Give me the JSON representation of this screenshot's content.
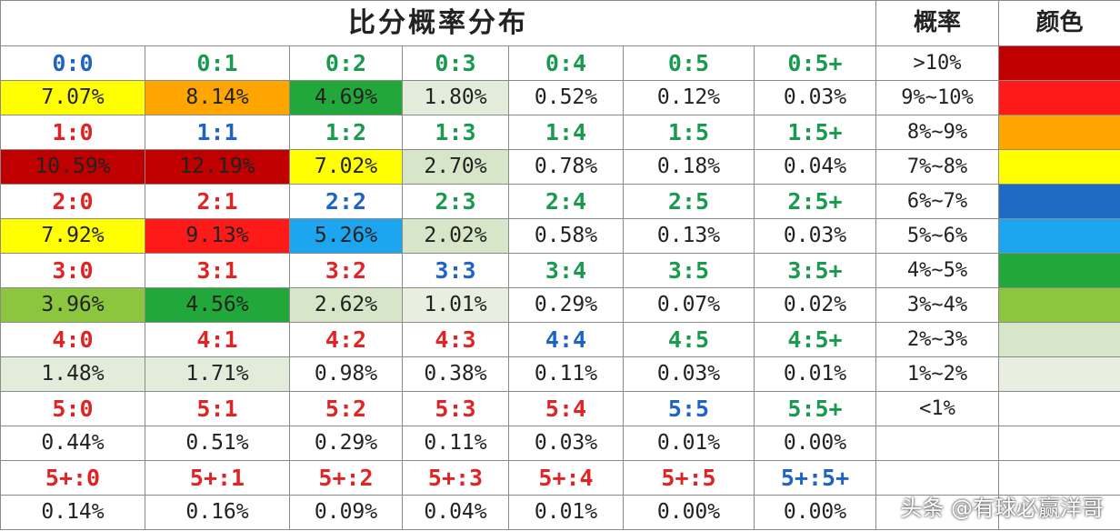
{
  "title": "比分概率分布",
  "legend": {
    "header_prob": "概率",
    "header_color": "颜色",
    "rows": [
      {
        "label": ">10%",
        "color": "#c00000"
      },
      {
        "label": "9%~10%",
        "color": "#ff1a1a"
      },
      {
        "label": "8%~9%",
        "color": "#ffa500"
      },
      {
        "label": "7%~8%",
        "color": "#ffff00"
      },
      {
        "label": "6%~7%",
        "color": "#1f6bc4"
      },
      {
        "label": "5%~6%",
        "color": "#1ea5f0"
      },
      {
        "label": "4%~5%",
        "color": "#22a83a"
      },
      {
        "label": "3%~4%",
        "color": "#8cc63f"
      },
      {
        "label": "2%~3%",
        "color": "#d7e6c8"
      },
      {
        "label": "1%~2%",
        "color": "#e8efe0"
      },
      {
        "label": "<1%",
        "color": "#ffffff"
      }
    ]
  },
  "grid": [
    {
      "scores": [
        {
          "text": "0:0",
          "tone": "blue"
        },
        {
          "text": "0:1",
          "tone": "green"
        },
        {
          "text": "0:2",
          "tone": "green"
        },
        {
          "text": "0:3",
          "tone": "green"
        },
        {
          "text": "0:4",
          "tone": "green"
        },
        {
          "text": "0:5",
          "tone": "green"
        },
        {
          "text": "0:5+",
          "tone": "green"
        }
      ],
      "probs": [
        {
          "text": "7.07%",
          "bg": "#ffff00"
        },
        {
          "text": "8.14%",
          "bg": "#ffa500"
        },
        {
          "text": "4.69%",
          "bg": "#22a83a"
        },
        {
          "text": "1.80%",
          "bg": "#e2ecda"
        },
        {
          "text": "0.52%",
          "bg": "#ffffff"
        },
        {
          "text": "0.12%",
          "bg": "#ffffff"
        },
        {
          "text": "0.03%",
          "bg": "#ffffff"
        }
      ]
    },
    {
      "scores": [
        {
          "text": "1:0",
          "tone": "red"
        },
        {
          "text": "1:1",
          "tone": "blue"
        },
        {
          "text": "1:2",
          "tone": "green"
        },
        {
          "text": "1:3",
          "tone": "green"
        },
        {
          "text": "1:4",
          "tone": "green"
        },
        {
          "text": "1:5",
          "tone": "green"
        },
        {
          "text": "1:5+",
          "tone": "green"
        }
      ],
      "probs": [
        {
          "text": "10.59%",
          "bg": "#c00000"
        },
        {
          "text": "12.19%",
          "bg": "#c00000"
        },
        {
          "text": "7.02%",
          "bg": "#ffff00"
        },
        {
          "text": "2.70%",
          "bg": "#d7e6c8"
        },
        {
          "text": "0.78%",
          "bg": "#ffffff"
        },
        {
          "text": "0.18%",
          "bg": "#ffffff"
        },
        {
          "text": "0.04%",
          "bg": "#ffffff"
        }
      ]
    },
    {
      "scores": [
        {
          "text": "2:0",
          "tone": "red"
        },
        {
          "text": "2:1",
          "tone": "red"
        },
        {
          "text": "2:2",
          "tone": "blue"
        },
        {
          "text": "2:3",
          "tone": "green"
        },
        {
          "text": "2:4",
          "tone": "green"
        },
        {
          "text": "2:5",
          "tone": "green"
        },
        {
          "text": "2:5+",
          "tone": "green"
        }
      ],
      "probs": [
        {
          "text": "7.92%",
          "bg": "#ffff00"
        },
        {
          "text": "9.13%",
          "bg": "#ff1a1a"
        },
        {
          "text": "5.26%",
          "bg": "#1ea5f0"
        },
        {
          "text": "2.02%",
          "bg": "#d7e6c8"
        },
        {
          "text": "0.58%",
          "bg": "#ffffff"
        },
        {
          "text": "0.13%",
          "bg": "#ffffff"
        },
        {
          "text": "0.03%",
          "bg": "#ffffff"
        }
      ]
    },
    {
      "scores": [
        {
          "text": "3:0",
          "tone": "red"
        },
        {
          "text": "3:1",
          "tone": "red"
        },
        {
          "text": "3:2",
          "tone": "red"
        },
        {
          "text": "3:3",
          "tone": "blue"
        },
        {
          "text": "3:4",
          "tone": "green"
        },
        {
          "text": "3:5",
          "tone": "green"
        },
        {
          "text": "3:5+",
          "tone": "green"
        }
      ],
      "probs": [
        {
          "text": "3.96%",
          "bg": "#8cc63f"
        },
        {
          "text": "4.56%",
          "bg": "#22a83a"
        },
        {
          "text": "2.62%",
          "bg": "#d7e6c8"
        },
        {
          "text": "1.01%",
          "bg": "#e8efe0"
        },
        {
          "text": "0.29%",
          "bg": "#ffffff"
        },
        {
          "text": "0.07%",
          "bg": "#ffffff"
        },
        {
          "text": "0.02%",
          "bg": "#ffffff"
        }
      ]
    },
    {
      "scores": [
        {
          "text": "4:0",
          "tone": "red"
        },
        {
          "text": "4:1",
          "tone": "red"
        },
        {
          "text": "4:2",
          "tone": "red"
        },
        {
          "text": "4:3",
          "tone": "red"
        },
        {
          "text": "4:4",
          "tone": "blue"
        },
        {
          "text": "4:5",
          "tone": "green"
        },
        {
          "text": "4:5+",
          "tone": "green"
        }
      ],
      "probs": [
        {
          "text": "1.48%",
          "bg": "#e2ecda"
        },
        {
          "text": "1.71%",
          "bg": "#e2ecda"
        },
        {
          "text": "0.98%",
          "bg": "#ffffff"
        },
        {
          "text": "0.38%",
          "bg": "#ffffff"
        },
        {
          "text": "0.11%",
          "bg": "#ffffff"
        },
        {
          "text": "0.03%",
          "bg": "#ffffff"
        },
        {
          "text": "0.01%",
          "bg": "#ffffff"
        }
      ]
    },
    {
      "scores": [
        {
          "text": "5:0",
          "tone": "red"
        },
        {
          "text": "5:1",
          "tone": "red"
        },
        {
          "text": "5:2",
          "tone": "red"
        },
        {
          "text": "5:3",
          "tone": "red"
        },
        {
          "text": "5:4",
          "tone": "red"
        },
        {
          "text": "5:5",
          "tone": "blue"
        },
        {
          "text": "5:5+",
          "tone": "green"
        }
      ],
      "probs": [
        {
          "text": "0.44%",
          "bg": "#ffffff"
        },
        {
          "text": "0.51%",
          "bg": "#ffffff"
        },
        {
          "text": "0.29%",
          "bg": "#ffffff"
        },
        {
          "text": "0.11%",
          "bg": "#ffffff"
        },
        {
          "text": "0.03%",
          "bg": "#ffffff"
        },
        {
          "text": "0.01%",
          "bg": "#ffffff"
        },
        {
          "text": "0.00%",
          "bg": "#ffffff"
        }
      ]
    },
    {
      "scores": [
        {
          "text": "5+:0",
          "tone": "red"
        },
        {
          "text": "5+:1",
          "tone": "red"
        },
        {
          "text": "5+:2",
          "tone": "red"
        },
        {
          "text": "5+:3",
          "tone": "red"
        },
        {
          "text": "5+:4",
          "tone": "red"
        },
        {
          "text": "5+:5",
          "tone": "red"
        },
        {
          "text": "5+:5+",
          "tone": "blue"
        }
      ],
      "probs": [
        {
          "text": "0.14%",
          "bg": "#ffffff"
        },
        {
          "text": "0.16%",
          "bg": "#ffffff"
        },
        {
          "text": "0.09%",
          "bg": "#ffffff"
        },
        {
          "text": "0.04%",
          "bg": "#ffffff"
        },
        {
          "text": "0.01%",
          "bg": "#ffffff"
        },
        {
          "text": "0.00%",
          "bg": "#ffffff"
        },
        {
          "text": "0.00%",
          "bg": "#ffffff"
        }
      ]
    }
  ],
  "watermark": "头条 @有球必赢洋哥"
}
